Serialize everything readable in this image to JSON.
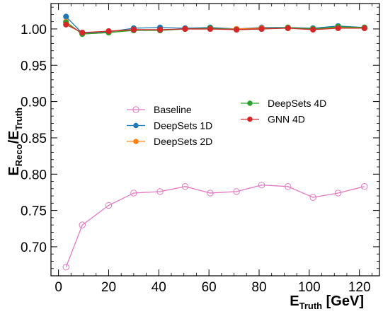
{
  "chart_data": {
    "type": "line",
    "xlabel": {
      "main": "E",
      "sub": "Truth",
      "unit": " [GeV]"
    },
    "ylabel": {
      "num_main": "E",
      "num_sub": "Reco",
      "den_main": "/E",
      "den_sub": "Truth"
    },
    "xlim": [
      -3,
      128
    ],
    "ylim": [
      0.66,
      1.035
    ],
    "x_ticks": [
      0,
      20,
      40,
      60,
      80,
      100,
      120
    ],
    "x_tick_labels": [
      "0",
      "20",
      "40",
      "60",
      "80",
      "100",
      "120"
    ],
    "y_ticks": [
      0.7,
      0.75,
      0.8,
      0.85,
      0.9,
      0.95,
      1.0
    ],
    "y_tick_labels": [
      "0.70",
      "0.75",
      "0.80",
      "0.85",
      "0.90",
      "0.95",
      "1.00"
    ],
    "x": [
      3,
      9.5,
      20,
      30,
      40.5,
      50.5,
      60.5,
      71,
      81,
      91.5,
      101.5,
      111.5,
      122
    ],
    "series": [
      {
        "name": "Baseline",
        "color": "#e377c2",
        "marker": "open-circle",
        "values": [
          0.672,
          0.73,
          0.757,
          0.774,
          0.776,
          0.783,
          0.774,
          0.776,
          0.785,
          0.783,
          0.768,
          0.774,
          0.783
        ]
      },
      {
        "name": "DeepSets 1D",
        "color": "#1f77b4",
        "marker": "filled-circle",
        "values": [
          1.017,
          0.994,
          0.996,
          1.001,
          1.002,
          1.001,
          1.002,
          1.0,
          1.002,
          1.002,
          1.001,
          1.004,
          1.002
        ]
      },
      {
        "name": "DeepSets 2D",
        "color": "#ff7f0e",
        "marker": "filled-circle",
        "values": [
          1.01,
          0.993,
          0.995,
          0.999,
          0.998,
          1.0,
          1.0,
          1.0,
          1.001,
          1.001,
          1.0,
          1.002,
          1.001
        ]
      },
      {
        "name": "DeepSets 4D",
        "color": "#2ca02c",
        "marker": "filled-circle",
        "values": [
          1.009,
          0.993,
          0.995,
          0.998,
          0.998,
          1.0,
          1.001,
          0.999,
          1.0,
          1.002,
          1.0,
          1.003,
          1.002
        ]
      },
      {
        "name": "GNN 4D",
        "color": "#d62728",
        "marker": "filled-circle",
        "values": [
          1.006,
          0.995,
          0.997,
          0.999,
          0.999,
          1.0,
          1.0,
          0.999,
          1.0,
          1.001,
          0.999,
          1.001,
          1.001
        ]
      }
    ],
    "legend": [
      {
        "label": "Baseline",
        "color": "#e377c2",
        "marker": "open-circle"
      },
      {
        "label": "DeepSets 1D",
        "color": "#1f77b4",
        "marker": "filled-circle"
      },
      {
        "label": "DeepSets 2D",
        "color": "#ff7f0e",
        "marker": "filled-circle"
      },
      {
        "label": "DeepSets 4D",
        "color": "#2ca02c",
        "marker": "filled-circle"
      },
      {
        "label": "GNN 4D",
        "color": "#d62728",
        "marker": "filled-circle"
      }
    ],
    "legend_placement": "center",
    "grid": false
  }
}
